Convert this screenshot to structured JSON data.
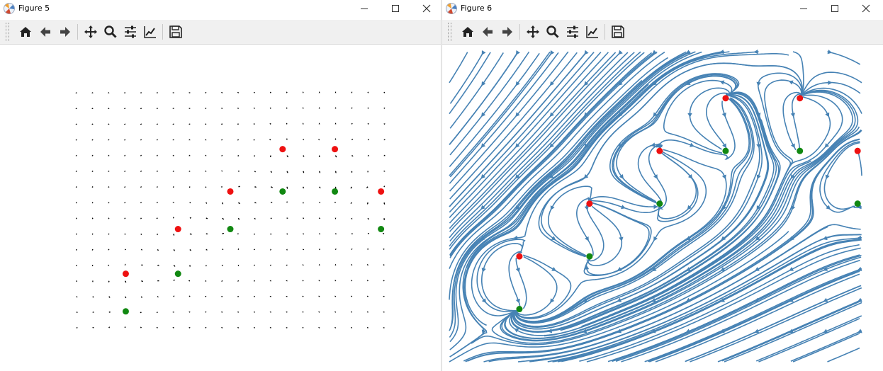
{
  "windows": [
    {
      "title": "Figure 5",
      "toolbar": [
        "home-icon",
        "back-arrow-icon",
        "forward-arrow-icon",
        "pan-icon",
        "zoom-icon",
        "subplots-config-icon",
        "edit-axes-icon",
        "save-icon"
      ]
    },
    {
      "title": "Figure 6",
      "toolbar": [
        "home-icon",
        "back-arrow-icon",
        "forward-arrow-icon",
        "pan-icon",
        "zoom-icon",
        "subplots-config-icon",
        "edit-axes-icon",
        "save-icon"
      ]
    }
  ],
  "colors": {
    "source_point": "#ee1111",
    "sink_point": "#118811",
    "quiver_arrow": "#000000",
    "streamline": "#4682b4",
    "toolbar_bg": "#f0f0f0"
  },
  "chart_data": [
    {
      "type": "quiver",
      "title": "",
      "xlabel": "",
      "ylabel": "",
      "axes_visible": false,
      "grid": false,
      "grid_size": [
        20,
        16
      ],
      "red_points": [
        [
          0.16,
          0.23
        ],
        [
          0.33,
          0.42
        ],
        [
          0.5,
          0.58
        ],
        [
          0.67,
          0.76
        ],
        [
          0.84,
          0.76
        ],
        [
          0.99,
          0.58
        ]
      ],
      "green_points": [
        [
          0.16,
          0.07
        ],
        [
          0.33,
          0.23
        ],
        [
          0.5,
          0.42
        ],
        [
          0.67,
          0.58
        ],
        [
          0.84,
          0.58
        ],
        [
          0.99,
          0.42
        ]
      ]
    },
    {
      "type": "streamplot",
      "title": "",
      "xlabel": "",
      "ylabel": "",
      "axes_visible": false,
      "grid": false,
      "red_points": [
        [
          0.17,
          0.34
        ],
        [
          0.34,
          0.51
        ],
        [
          0.51,
          0.68
        ],
        [
          0.67,
          0.85
        ],
        [
          0.85,
          0.85
        ],
        [
          0.99,
          0.68
        ]
      ],
      "green_points": [
        [
          0.17,
          0.17
        ],
        [
          0.34,
          0.34
        ],
        [
          0.51,
          0.51
        ],
        [
          0.67,
          0.68
        ],
        [
          0.85,
          0.68
        ],
        [
          0.99,
          0.51
        ]
      ]
    }
  ]
}
